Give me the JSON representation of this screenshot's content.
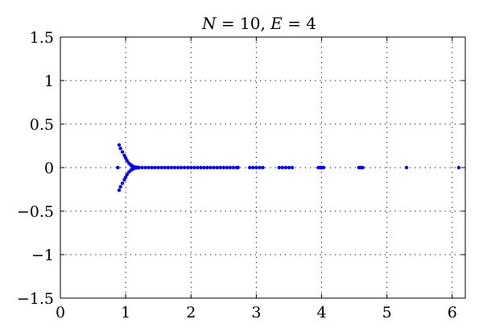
{
  "chart_data": {
    "type": "scatter",
    "title": "N = 10, E = 4",
    "title_parts": [
      {
        "text": "N",
        "italic": true
      },
      {
        "text": " = 10, ",
        "italic": false
      },
      {
        "text": "E",
        "italic": true
      },
      {
        "text": " = 4",
        "italic": false
      }
    ],
    "xlabel": "",
    "ylabel": "",
    "xlim": [
      0,
      6.2
    ],
    "ylim": [
      -1.5,
      1.5
    ],
    "xticks": [
      0,
      1,
      2,
      3,
      4,
      5,
      6
    ],
    "xtick_labels": [
      "0",
      "1",
      "2",
      "3",
      "4",
      "5",
      "6"
    ],
    "yticks": [
      1.5,
      1,
      0.5,
      0,
      -0.5,
      -1,
      -1.5
    ],
    "ytick_labels": [
      "1.5",
      "1",
      "0.5",
      "0",
      "−0.5",
      "−1",
      "−1.5"
    ],
    "grid": true,
    "marker_color": "#0000ee",
    "series": [
      {
        "name": "",
        "x": [
          0.9,
          0.92,
          0.95,
          0.98,
          1.0,
          1.02,
          1.05,
          1.08,
          1.1,
          1.12,
          1.15,
          1.18,
          1.2,
          0.9,
          0.92,
          0.95,
          0.98,
          1.0,
          1.02,
          1.05,
          1.08,
          1.1,
          1.12,
          1.15,
          1.18,
          1.2,
          0.88,
          1.25,
          1.3,
          1.35,
          1.4,
          1.45,
          1.5,
          1.55,
          1.6,
          1.65,
          1.7,
          1.75,
          1.8,
          1.85,
          1.9,
          1.95,
          2.0,
          2.05,
          2.1,
          2.15,
          2.2,
          2.25,
          2.3,
          2.35,
          2.4,
          2.45,
          2.5,
          2.55,
          2.6,
          2.65,
          2.7,
          2.72,
          2.9,
          2.95,
          3.0,
          3.05,
          3.1,
          3.35,
          3.4,
          3.45,
          3.5,
          3.55,
          3.95,
          3.98,
          4.0,
          4.03,
          4.57,
          4.6,
          4.63,
          5.3,
          6.1
        ],
        "y": [
          0.26,
          0.22,
          0.18,
          0.14,
          0.11,
          0.08,
          0.05,
          0.03,
          0.02,
          0.01,
          0.005,
          0.003,
          0.0,
          -0.26,
          -0.22,
          -0.18,
          -0.14,
          -0.11,
          -0.08,
          -0.05,
          -0.03,
          -0.02,
          -0.01,
          -0.005,
          -0.003,
          0.0,
          0.0,
          0,
          0,
          0,
          0,
          0,
          0,
          0,
          0,
          0,
          0,
          0,
          0,
          0,
          0,
          0,
          0,
          0,
          0,
          0,
          0,
          0,
          0,
          0,
          0,
          0,
          0,
          0,
          0,
          0,
          0,
          0,
          0,
          0,
          0,
          0,
          0,
          0,
          0,
          0,
          0,
          0,
          0,
          0,
          0,
          0,
          0,
          0,
          0,
          0,
          0
        ]
      }
    ]
  }
}
